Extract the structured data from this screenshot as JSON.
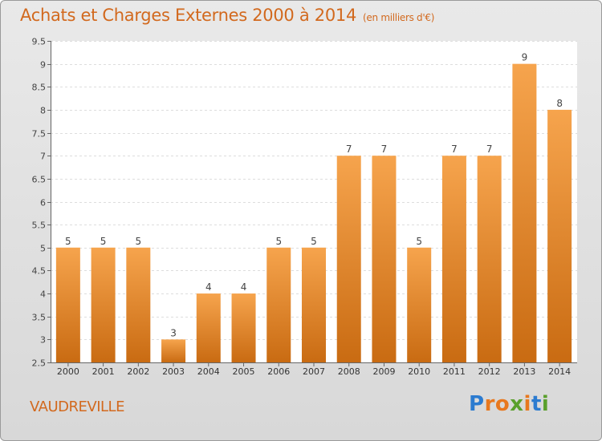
{
  "header": {
    "title": "Achats et Charges Externes 2000 à 2014",
    "subtitle": "(en milliers d'€)"
  },
  "footer": {
    "place": "VAUDREVILLE",
    "brand_letters": [
      "P",
      "r",
      "o",
      "x",
      "i",
      "t",
      "i"
    ],
    "brand_colors": [
      "#2b7bd0",
      "#e8781e",
      "#e8781e",
      "#5aa02c",
      "#e8781e",
      "#2b7bd0",
      "#5aa02c"
    ]
  },
  "colors": {
    "bar_light": "#f6a44d",
    "bar_dark": "#c96b12",
    "accent": "#d2691e"
  },
  "chart_data": {
    "type": "bar",
    "title": "Achats et Charges Externes 2000 à 2014",
    "subtitle": "(en milliers d'€)",
    "xlabel": "",
    "ylabel": "",
    "categories": [
      "2000",
      "2001",
      "2002",
      "2003",
      "2004",
      "2005",
      "2006",
      "2007",
      "2008",
      "2009",
      "2010",
      "2011",
      "2012",
      "2013",
      "2014"
    ],
    "values": [
      5,
      5,
      5,
      3,
      4,
      4,
      5,
      5,
      7,
      7,
      5,
      7,
      7,
      9,
      8
    ],
    "ylim": [
      2.5,
      9.5
    ],
    "yticks": [
      2.5,
      3,
      3.5,
      4,
      4.5,
      5,
      5.5,
      6,
      6.5,
      7,
      7.5,
      8,
      8.5,
      9,
      9.5
    ],
    "grid": true,
    "legend": "none"
  }
}
